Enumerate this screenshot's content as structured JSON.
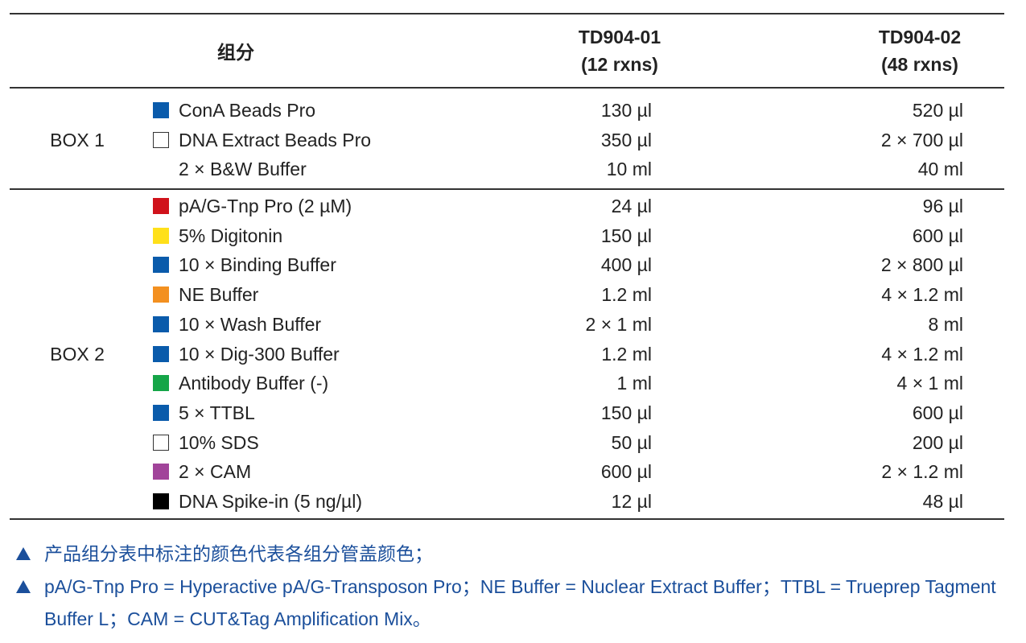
{
  "table": {
    "header": {
      "component": "组分",
      "columns": [
        {
          "code": "TD904-01",
          "rxns": "(12 rxns)"
        },
        {
          "code": "TD904-02",
          "rxns": "(48 rxns)"
        }
      ]
    },
    "groups": [
      {
        "label": "BOX 1",
        "rows": [
          {
            "name": "ConA Beads Pro",
            "color": "#0a5bab",
            "amounts": [
              "130 µl",
              "520 µl"
            ]
          },
          {
            "name": "DNA Extract Beads Pro",
            "color": "#ffffff",
            "amounts": [
              "350 µl",
              "2 × 700 µl"
            ]
          },
          {
            "name": "2 × B&W Buffer",
            "color": null,
            "amounts": [
              "10 ml",
              "40 ml"
            ]
          }
        ]
      },
      {
        "label": "BOX 2",
        "rows": [
          {
            "name": "pA/G-Tnp Pro (2 µM)",
            "color": "#d0121b",
            "amounts": [
              "24 µl",
              "96 µl"
            ]
          },
          {
            "name": "5% Digitonin",
            "color": "#ffe01a",
            "amounts": [
              "150 µl",
              "600 µl"
            ]
          },
          {
            "name": "10 × Binding Buffer",
            "color": "#0a5bab",
            "amounts": [
              "400 µl",
              "2 × 800 µl"
            ]
          },
          {
            "name": "NE Buffer",
            "color": "#f39020",
            "amounts": [
              "1.2 ml",
              "4 × 1.2 ml"
            ]
          },
          {
            "name": "10 × Wash Buffer",
            "color": "#0a5bab",
            "amounts": [
              "2 × 1 ml",
              "8 ml"
            ]
          },
          {
            "name": "10 × Dig-300 Buffer",
            "color": "#0a5bab",
            "amounts": [
              "1.2 ml",
              "4 × 1.2 ml"
            ]
          },
          {
            "name": "Antibody Buffer (-)",
            "color": "#15a548",
            "amounts": [
              "1 ml",
              "4 × 1 ml"
            ]
          },
          {
            "name": "5 × TTBL",
            "color": "#0a5bab",
            "amounts": [
              "150 µl",
              "600 µl"
            ]
          },
          {
            "name": "10% SDS",
            "color": "#ffffff",
            "amounts": [
              "50 µl",
              "200 µl"
            ]
          },
          {
            "name": "2 × CAM",
            "color": "#a1449a",
            "amounts": [
              "600 µl",
              "2 × 1.2 ml"
            ]
          },
          {
            "name": "DNA Spike-in (5 ng/µl)",
            "color": "#000000",
            "amounts": [
              "12 µl",
              "48 µl"
            ]
          }
        ]
      }
    ]
  },
  "notes": [
    "产品组分表中标注的颜色代表各组分管盖颜色；",
    "pA/G-Tnp Pro = Hyperactive pA/G-Transposon Pro；NE Buffer = Nuclear Extract Buffer；TTBL = Trueprep Tagment Buffer L；CAM = CUT&Tag Amplification Mix。"
  ]
}
